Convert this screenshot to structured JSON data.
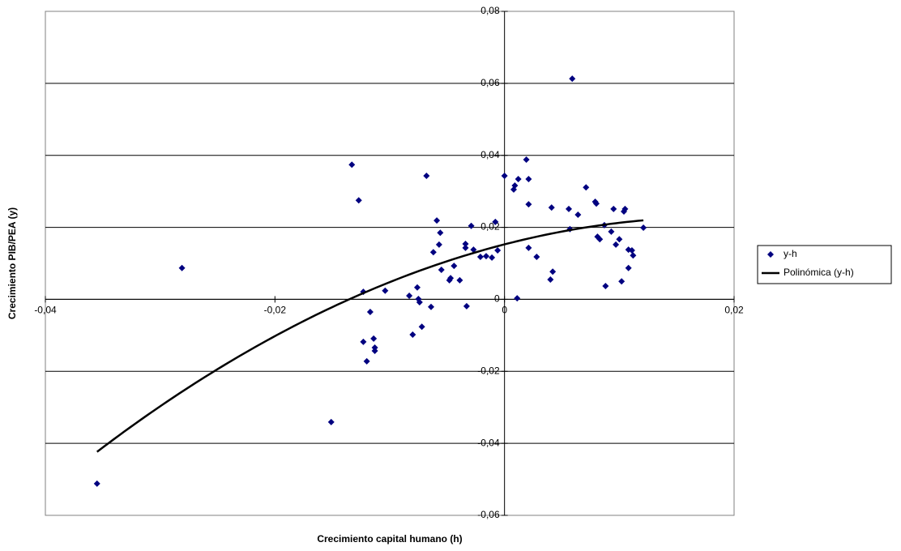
{
  "chart_data": {
    "type": "scatter",
    "xlabel": "Crecimiento capital humano (h)",
    "ylabel": "Crecimiento PIB/PEA (y)",
    "xlim": [
      -0.04,
      0.02
    ],
    "ylim": [
      -0.06,
      0.08
    ],
    "xticks": [
      {
        "value": -0.04,
        "label": "-0,04"
      },
      {
        "value": -0.02,
        "label": "-0,02"
      },
      0,
      {
        "value": 0.02,
        "label": "0,02"
      }
    ],
    "yticks": [
      {
        "value": -0.06,
        "label": "-0,06"
      },
      {
        "value": -0.04,
        "label": "-0,04"
      },
      {
        "value": -0.02,
        "label": "-0,02"
      },
      0,
      {
        "value": 0.02,
        "label": "0,02"
      },
      {
        "value": 0.04,
        "label": "0,04"
      },
      {
        "value": 0.06,
        "label": "0,06"
      },
      {
        "value": 0.08,
        "label": "0,08"
      }
    ],
    "grid": true,
    "legend": "right",
    "series": [
      {
        "name": "y-h",
        "color": "#000080",
        "x": [
          -0.0355,
          -0.0281,
          -0.0151,
          -0.0133,
          -0.0127,
          -0.0123,
          -0.0123,
          -0.012,
          -0.0117,
          -0.0114,
          -0.0113,
          -0.0113,
          -0.0104,
          -0.0083,
          -0.008,
          -0.0076,
          -0.0075,
          -0.0074,
          -0.0072,
          -0.0068,
          -0.0064,
          -0.0062,
          -0.0059,
          -0.0057,
          -0.0056,
          -0.0055,
          -0.0048,
          -0.0047,
          -0.0044,
          -0.0039,
          -0.0034,
          -0.0034,
          -0.0033,
          -0.0029,
          -0.0027,
          -0.0021,
          -0.0016,
          -0.0011,
          -0.0008,
          -0.0006,
          0,
          0.0008,
          0.0009,
          0.0011,
          0.0012,
          0.0019,
          0.0021,
          0.0021,
          0.0021,
          0.0028,
          0.004,
          0.0041,
          0.0042,
          0.0056,
          0.0057,
          0.0059,
          0.0064,
          0.0071,
          0.0079,
          0.008,
          0.0081,
          0.0083,
          0.0087,
          0.0088,
          0.0093,
          0.0095,
          0.0097,
          0.01,
          0.0102,
          0.0104,
          0.0105,
          0.0108,
          0.0108,
          0.0111,
          0.0112,
          0.0121
        ],
        "values": [
          -0.0512,
          0.0087,
          -0.0341,
          0.0374,
          0.0275,
          0.0021,
          -0.0118,
          -0.0172,
          -0.0035,
          -0.0109,
          -0.0134,
          -0.0143,
          0.0024,
          0.001,
          -0.0098,
          0.0033,
          0.0001,
          -0.0008,
          -0.0076,
          0.0343,
          -0.0021,
          0.0131,
          0.0219,
          0.0152,
          0.0185,
          0.0082,
          0.0053,
          0.0059,
          0.0093,
          0.0053,
          0.0154,
          0.0143,
          -0.0019,
          0.0204,
          0.0138,
          0.0118,
          0.012,
          0.0116,
          0.0215,
          0.0136,
          0.0343,
          0.0305,
          0.0316,
          0.0003,
          0.0334,
          0.0388,
          0.0334,
          0.0264,
          0.0143,
          0.0118,
          0.0055,
          0.0255,
          0.0077,
          0.0251,
          0.0195,
          0.0613,
          0.0235,
          0.0311,
          0.0271,
          0.0266,
          0.0174,
          0.0167,
          0.0206,
          0.0037,
          0.0188,
          0.0251,
          0.0152,
          0.0167,
          0.005,
          0.0244,
          0.0251,
          0.0087,
          0.0138,
          0.0136,
          0.0122,
          0.0199
        ]
      }
    ],
    "trendline": {
      "name": "Polinómica (y-h)",
      "color": "#000000",
      "degree": 2
    }
  }
}
